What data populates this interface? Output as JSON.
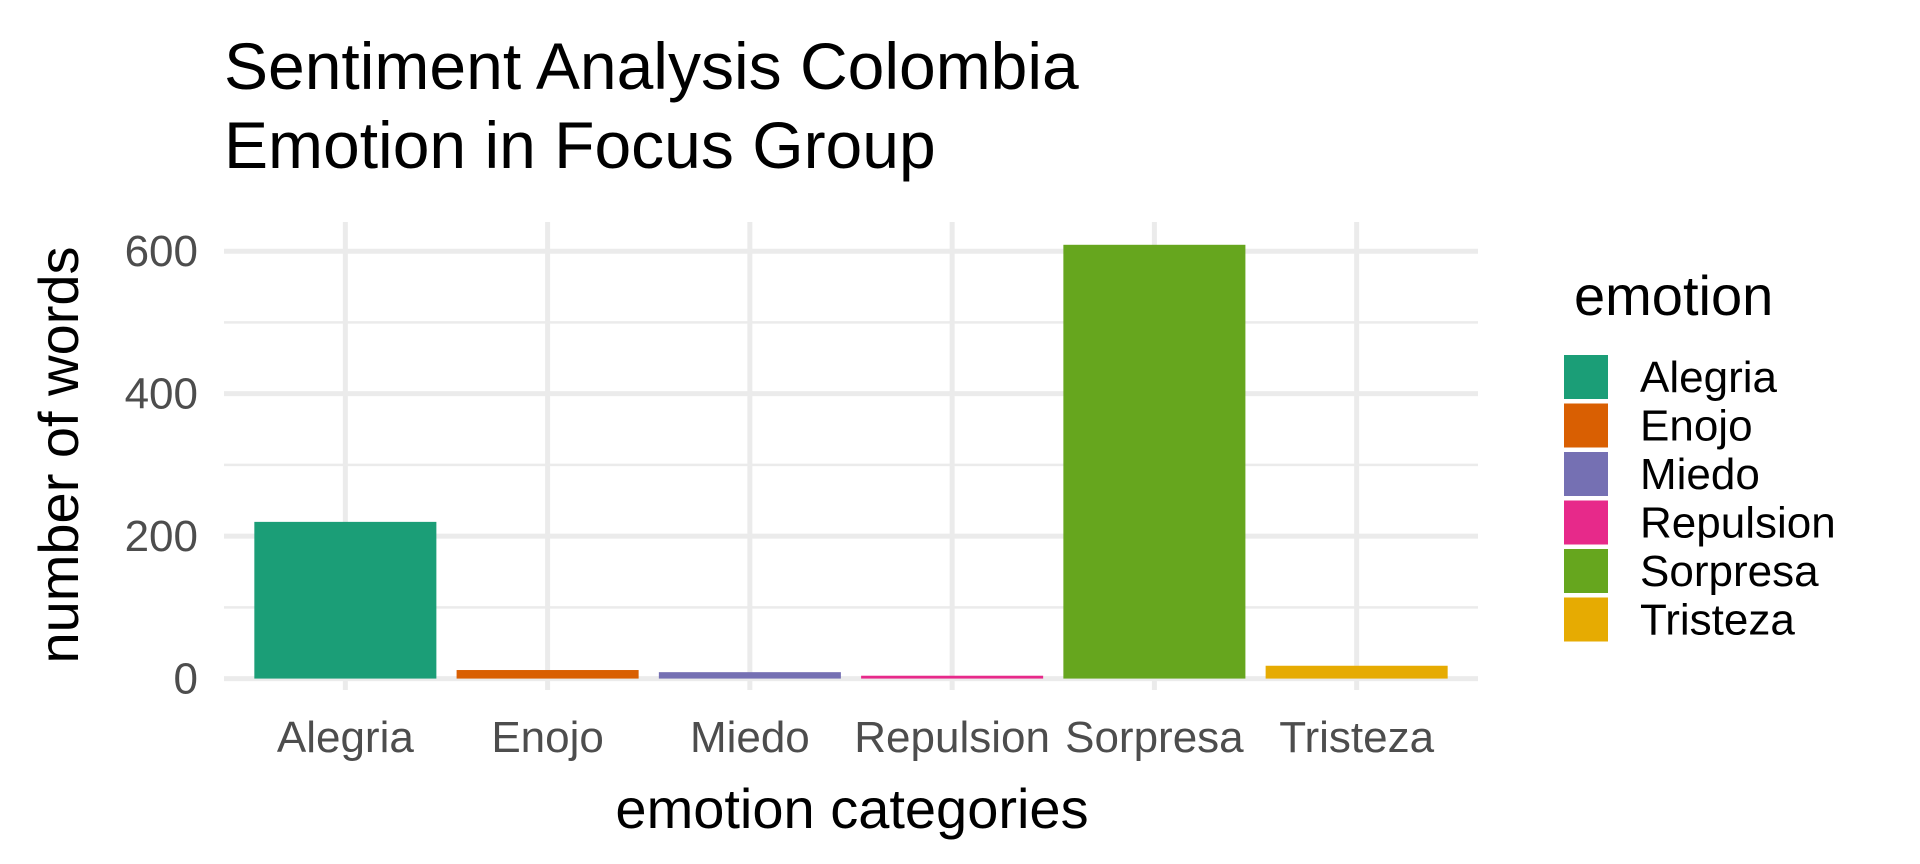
{
  "chart_data": {
    "type": "bar",
    "title_lines": [
      "Sentiment Analysis Colombia",
      "Emotion in Focus Group"
    ],
    "xlabel": "emotion categories",
    "ylabel": "number of words",
    "categories": [
      "Alegria",
      "Enojo",
      "Miedo",
      "Repulsion",
      "Sorpresa",
      "Tristeza"
    ],
    "values": [
      220,
      12,
      9,
      4,
      609,
      18
    ],
    "colors": [
      "#1b9e77",
      "#d95f02",
      "#7570b3",
      "#e7298a",
      "#66a61e",
      "#e6ab02"
    ],
    "ylim": [
      -2,
      641
    ],
    "yticks": [
      0,
      200,
      400,
      600
    ],
    "ytick_labels": [
      "0",
      "200",
      "400",
      "600"
    ],
    "grid": true,
    "legend": {
      "title": "emotion",
      "position": "right",
      "items": [
        "Alegria",
        "Enojo",
        "Miedo",
        "Repulsion",
        "Sorpresa",
        "Tristeza"
      ]
    }
  }
}
